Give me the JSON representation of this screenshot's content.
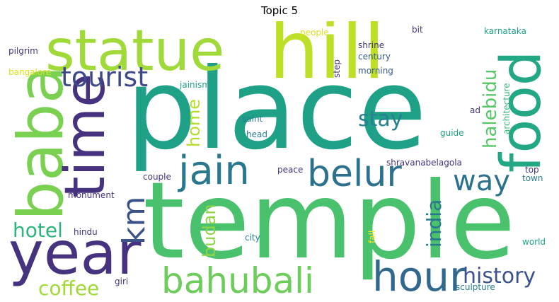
{
  "title": "Topic 5",
  "colors": {
    "bg": "#ffffff",
    "purple": "#46327e",
    "indigo": "#365c8d",
    "teal": "#277f8e",
    "green_teal": "#1fa187",
    "green": "#4ac16d",
    "lime": "#a0da39",
    "yellow": "#fde725"
  },
  "words": {
    "place": "place",
    "temple": "temple",
    "hill": "hill",
    "statue": "statue",
    "baba": "baba",
    "time": "time",
    "year": "year",
    "food": "food",
    "jain": "jain",
    "belur": "belur",
    "tourist": "tourist",
    "hour": "hour",
    "bahubali": "bahubali",
    "km": "km",
    "way": "way",
    "history": "history",
    "stay": "stay",
    "hotel": "hotel",
    "coffee": "coffee",
    "halebidu": "halebidu",
    "india": "india",
    "budan": "budan",
    "home": "home",
    "pilgrim": "pilgrim",
    "bangalore": "bangalore",
    "people": "people",
    "shrine": "shrine",
    "bit": "bit",
    "karnataka": "karnataka",
    "century": "century",
    "step": "step",
    "morning": "morning",
    "jainism": "jainism",
    "architecture": "architecture",
    "ad": "ad",
    "saint": "saint",
    "head": "head",
    "guide": "guide",
    "shravanabelagola": "shravanabelagola",
    "couple": "couple",
    "peace": "peace",
    "top": "top",
    "town": "town",
    "monument": "monument",
    "hindu": "hindu",
    "city": "city",
    "fall": "fall",
    "world": "world",
    "giri": "giri",
    "sculpture": "sculpture"
  }
}
